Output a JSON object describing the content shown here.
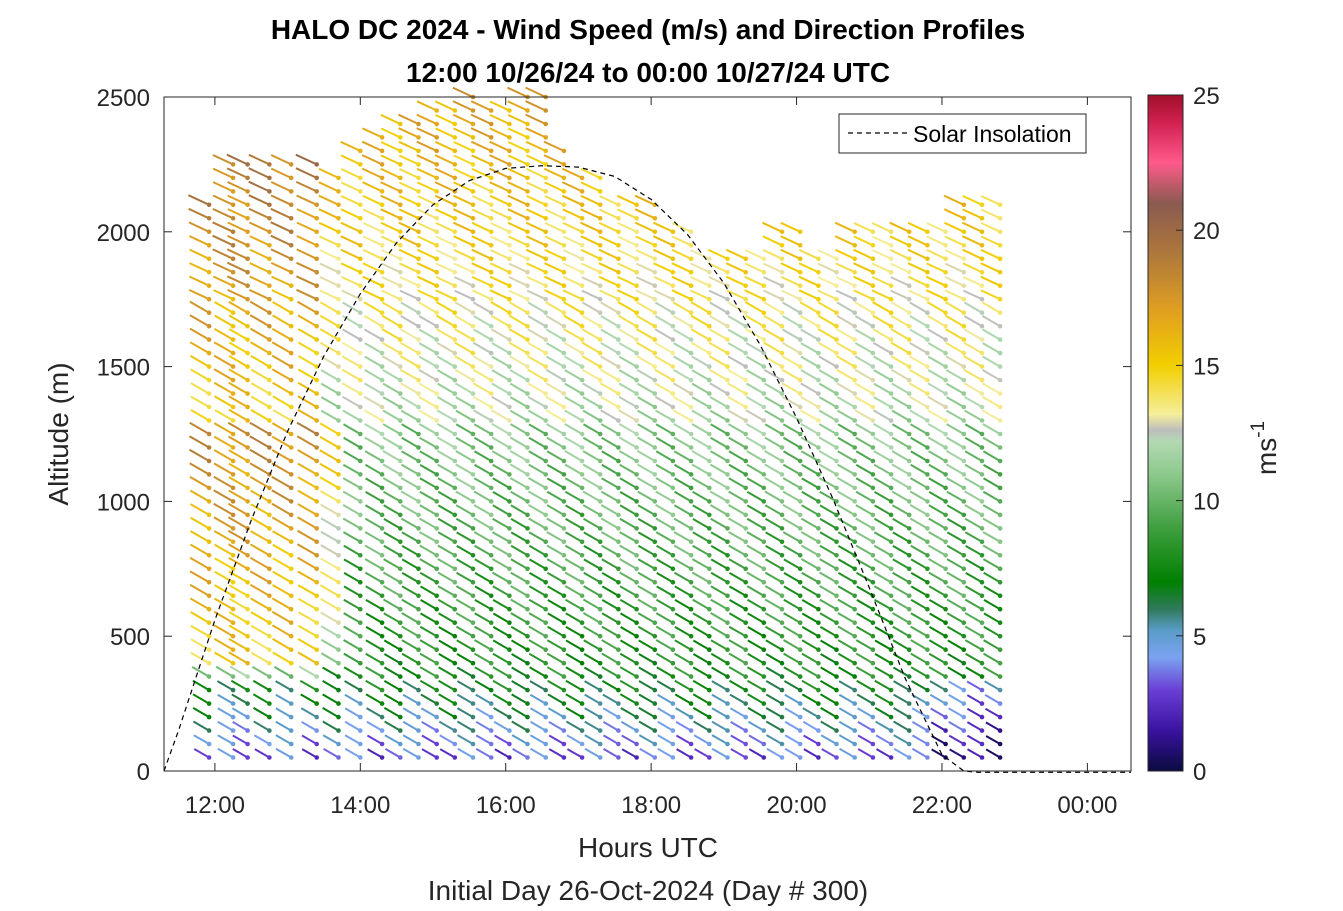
{
  "chart_data": {
    "type": "wind-barb-profile",
    "title": "HALO DC 2024 - Wind Speed (m/s) and Direction Profiles",
    "subtitle": "12:00 10/26/24 to 00:00 10/27/24  UTC",
    "xlabel": "Hours UTC",
    "xlabel2": "Initial Day 26-Oct-2024 (Day # 300)",
    "ylabel": "Altitude (m)",
    "xlim": [
      11.3,
      24.6
    ],
    "ylim": [
      0,
      2500
    ],
    "x_ticks": [
      12,
      14,
      16,
      18,
      20,
      22,
      24
    ],
    "x_tick_labels": [
      "12:00",
      "14:00",
      "16:00",
      "18:00",
      "20:00",
      "22:00",
      "00:00"
    ],
    "y_ticks": [
      0,
      500,
      1000,
      1500,
      2000,
      2500
    ],
    "y_tick_labels": [
      "0",
      "500",
      "1000",
      "1500",
      "2000",
      "2500"
    ],
    "colorbar": {
      "label": "ms",
      "label_exponent": "-1",
      "range": [
        0,
        25
      ],
      "ticks": [
        0,
        5,
        10,
        15,
        20,
        25
      ],
      "tick_labels": [
        "0",
        "5",
        "10",
        "15",
        "20",
        "25"
      ],
      "stops": [
        {
          "v": 0,
          "color": "#0b0b40"
        },
        {
          "v": 1.5,
          "color": "#3a12a0"
        },
        {
          "v": 3,
          "color": "#6a3fd6"
        },
        {
          "v": 4.2,
          "color": "#7aa2f0"
        },
        {
          "v": 5.2,
          "color": "#5a9cc8"
        },
        {
          "v": 6.0,
          "color": "#2f7a5a"
        },
        {
          "v": 7.0,
          "color": "#008000"
        },
        {
          "v": 9.0,
          "color": "#3f9f3f"
        },
        {
          "v": 11.0,
          "color": "#8ec98e"
        },
        {
          "v": 12.2,
          "color": "#b3d9b3"
        },
        {
          "v": 12.6,
          "color": "#bdbdbd"
        },
        {
          "v": 13.2,
          "color": "#f5ee9a"
        },
        {
          "v": 15.0,
          "color": "#f2cf00"
        },
        {
          "v": 17.0,
          "color": "#e0a020"
        },
        {
          "v": 19.0,
          "color": "#b07a3a"
        },
        {
          "v": 21.0,
          "color": "#8a5a50"
        },
        {
          "v": 22.5,
          "color": "#ff5a8a"
        },
        {
          "v": 24.0,
          "color": "#d02050"
        },
        {
          "v": 25.0,
          "color": "#a0102a"
        }
      ]
    },
    "legend": {
      "entries": [
        "Solar Insolation"
      ],
      "location": "top-right"
    },
    "solar_insolation": {
      "note_series": "Solar Insolation",
      "x": [
        11.3,
        11.5,
        12.0,
        12.5,
        13.0,
        13.5,
        14.0,
        14.5,
        15.0,
        15.5,
        16.0,
        16.5,
        17.0,
        17.5,
        18.0,
        18.5,
        19.0,
        19.5,
        20.0,
        20.5,
        21.0,
        21.5,
        22.0,
        22.3,
        22.5,
        24.6
      ],
      "y": [
        0,
        150,
        560,
        930,
        1260,
        1540,
        1770,
        1960,
        2100,
        2190,
        2235,
        2245,
        2240,
        2205,
        2120,
        1990,
        1810,
        1580,
        1310,
        1010,
        680,
        340,
        60,
        0,
        -5,
        -5
      ]
    },
    "wind_profile_times": [
      11.92,
      12.25,
      12.45,
      12.75,
      13.05,
      13.4,
      13.7,
      14.0,
      14.3,
      14.55,
      14.8,
      15.05,
      15.3,
      15.55,
      15.8,
      16.05,
      16.3,
      16.55,
      16.8,
      17.05,
      17.3,
      17.55,
      17.8,
      18.05,
      18.3,
      18.55,
      18.8,
      19.05,
      19.3,
      19.55,
      19.8,
      20.05,
      20.3,
      20.55,
      20.8,
      21.05,
      21.3,
      21.55,
      21.8,
      22.05,
      22.3,
      22.55,
      22.8
    ],
    "wind_profile_top_altitude": [
      2100,
      2250,
      2250,
      2250,
      2250,
      2250,
      2200,
      2300,
      2350,
      2400,
      2400,
      2450,
      2450,
      2500,
      2450,
      2450,
      2500,
      2500,
      2300,
      2200,
      2200,
      2100,
      2100,
      2100,
      2000,
      2000,
      1900,
      1900,
      1900,
      1900,
      2000,
      2000,
      1900,
      1900,
      2000,
      2000,
      2000,
      2000,
      2000,
      2000,
      2100,
      2100,
      2100
    ]
  }
}
